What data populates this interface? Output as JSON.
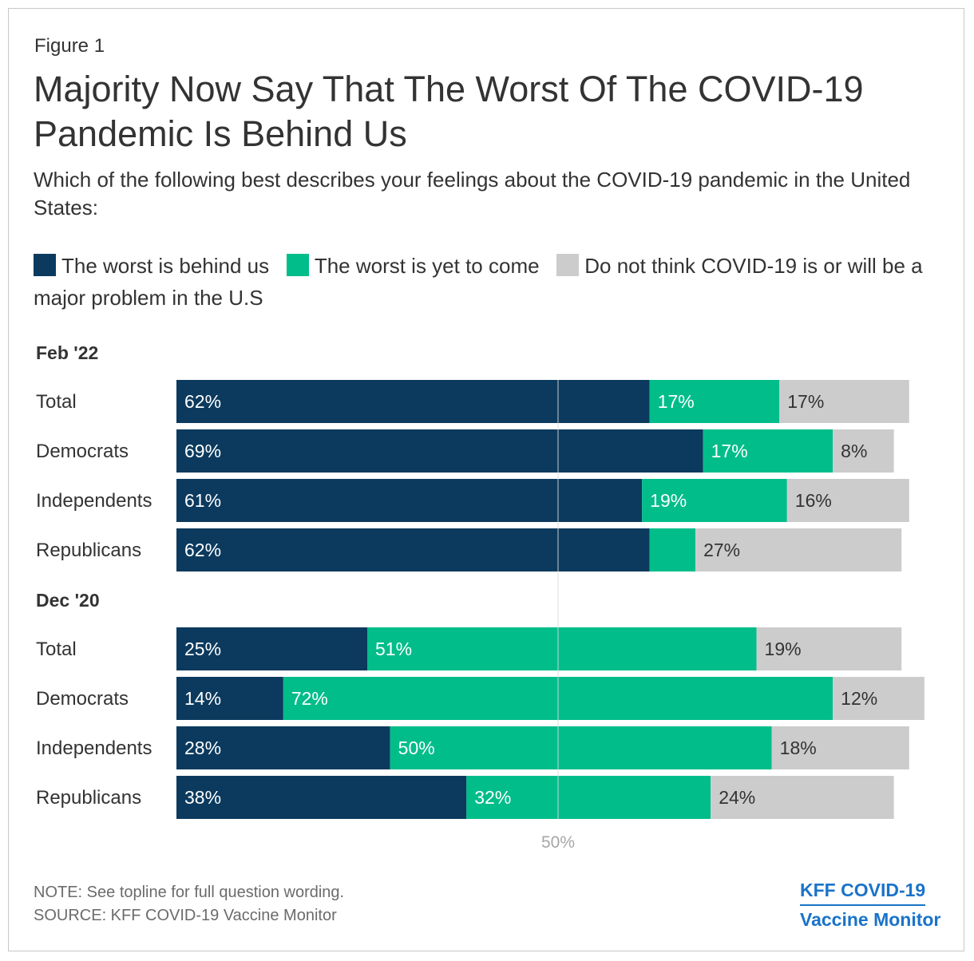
{
  "figure_label": "Figure 1",
  "title": "Majority Now Say That The Worst Of The COVID-19 Pandemic Is Behind Us",
  "subtitle": "Which of the following best describes your feelings about the COVID-19 pandemic in the United States:",
  "legend": [
    {
      "label": "The worst is behind us",
      "color": "#0b3a5e"
    },
    {
      "label": "The worst is yet to come",
      "color": "#00bd8a"
    },
    {
      "label": "Do not think COVID-19 is or will be a major problem in the U.S",
      "color": "#cccccc"
    }
  ],
  "chart_data": {
    "type": "bar",
    "orientation": "horizontal",
    "stacked": true,
    "series_names": [
      "The worst is behind us",
      "The worst is yet to come",
      "Do not think COVID-19 is or will be a major problem in the U.S"
    ],
    "series_colors": [
      "#0b3a5e",
      "#00bd8a",
      "#cccccc"
    ],
    "reference_line": {
      "value": 50,
      "label": "50%"
    },
    "xlim": [
      0,
      100
    ],
    "groups": [
      {
        "name": "Feb '22",
        "rows": [
          {
            "category": "Total",
            "values": [
              62,
              17,
              17
            ],
            "labels": [
              "62%",
              "17%",
              "17%"
            ]
          },
          {
            "category": "Democrats",
            "values": [
              69,
              17,
              8
            ],
            "labels": [
              "69%",
              "17%",
              "8%"
            ]
          },
          {
            "category": "Independents",
            "values": [
              61,
              19,
              16
            ],
            "labels": [
              "61%",
              "19%",
              "16%"
            ]
          },
          {
            "category": "Republicans",
            "values": [
              62,
              6,
              27
            ],
            "labels": [
              "62%",
              "",
              "27%"
            ]
          }
        ]
      },
      {
        "name": "Dec '20",
        "rows": [
          {
            "category": "Total",
            "values": [
              25,
              51,
              19
            ],
            "labels": [
              "25%",
              "51%",
              "19%"
            ]
          },
          {
            "category": "Democrats",
            "values": [
              14,
              72,
              12
            ],
            "labels": [
              "14%",
              "72%",
              "12%"
            ]
          },
          {
            "category": "Independents",
            "values": [
              28,
              50,
              18
            ],
            "labels": [
              "28%",
              "50%",
              "18%"
            ]
          },
          {
            "category": "Republicans",
            "values": [
              38,
              32,
              24
            ],
            "labels": [
              "38%",
              "32%",
              "24%"
            ]
          }
        ]
      }
    ]
  },
  "footer": {
    "note": "NOTE: See topline for full question wording.",
    "source": "SOURCE: KFF COVID-19 Vaccine Monitor"
  },
  "brand": {
    "line1": "KFF COVID-19",
    "line2": "Vaccine Monitor"
  }
}
